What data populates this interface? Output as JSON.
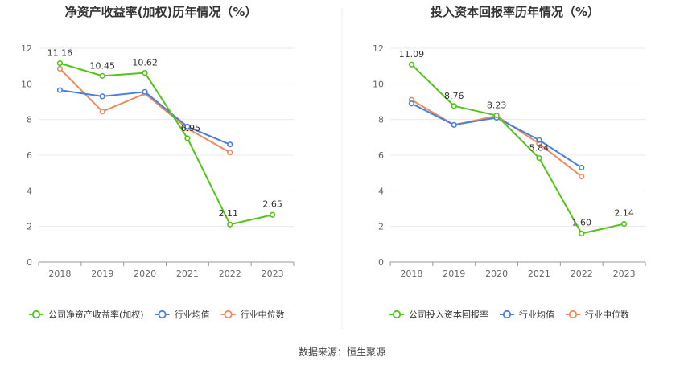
{
  "source_text": "数据来源：恒生聚源",
  "chart_data": [
    {
      "type": "line",
      "title": "净资产收益率(加权)历年情况（%）",
      "categories": [
        "2018",
        "2019",
        "2020",
        "2021",
        "2022",
        "2023"
      ],
      "ylim": [
        0,
        12
      ],
      "yticks": [
        0,
        2,
        4,
        6,
        8,
        10,
        12
      ],
      "grid": true,
      "legend_position": "bottom",
      "series": [
        {
          "name": "公司净资产收益率(加权)",
          "color": "#52c41a",
          "values": [
            11.16,
            10.45,
            10.62,
            6.95,
            2.11,
            2.65
          ],
          "labels": [
            "11.16",
            "10.45",
            "10.62",
            "6.95",
            "2.11",
            "2.65"
          ]
        },
        {
          "name": "行业均值",
          "color": "#4a7fdc",
          "values": [
            9.65,
            9.3,
            9.55,
            7.6,
            6.6,
            null
          ]
        },
        {
          "name": "行业中位数",
          "color": "#f08a5d",
          "values": [
            10.85,
            8.45,
            9.45,
            7.5,
            6.15,
            null
          ]
        }
      ]
    },
    {
      "type": "line",
      "title": "投入资本回报率历年情况（%）",
      "categories": [
        "2018",
        "2019",
        "2020",
        "2021",
        "2022",
        "2023"
      ],
      "ylim": [
        0,
        12
      ],
      "yticks": [
        0,
        2,
        4,
        6,
        8,
        10,
        12
      ],
      "grid": true,
      "legend_position": "bottom",
      "series": [
        {
          "name": "公司投入资本回报率",
          "color": "#52c41a",
          "values": [
            11.09,
            8.76,
            8.23,
            5.84,
            1.6,
            2.14
          ],
          "labels": [
            "11.09",
            "8.76",
            "8.23",
            "5.84",
            "1.60",
            "2.14"
          ]
        },
        {
          "name": "行业均值",
          "color": "#4a7fdc",
          "values": [
            8.9,
            7.7,
            8.1,
            6.85,
            5.3,
            null
          ]
        },
        {
          "name": "行业中位数",
          "color": "#f08a5d",
          "values": [
            9.1,
            7.7,
            8.2,
            6.65,
            4.8,
            null
          ]
        }
      ]
    }
  ]
}
